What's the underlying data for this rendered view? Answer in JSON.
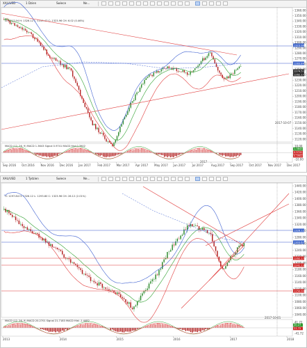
{
  "panels": [
    {
      "id": "p1",
      "symbol": "XAU/USD",
      "timeframe": "1 Dzien",
      "chart_style": "Swiece",
      "nav": "Ne...",
      "ohlc_text": "O: 1317.94 H: 1326.12 L: 1315.47 C: 1323.96 CH: 6.02 (0.46%)",
      "price_labels": [
        "1360.00",
        "1350.00",
        "1340.00",
        "1330.00",
        "1320.00",
        "1310.00",
        "1300.00",
        "1290.00",
        "1280.00",
        "1270.00",
        "1260.00",
        "1250.00",
        "1240.00",
        "1230.00",
        "1220.00",
        "1210.00",
        "1200.00",
        "1190.00",
        "1180.00",
        "1170.00",
        "1160.00",
        "1150.00",
        "1140.00",
        "1130.00",
        "1120.00"
      ],
      "tags": [
        {
          "text": "1323.96",
          "color": "#3a62c9"
        },
        {
          "text": "1283.84",
          "color": "#3a62c9"
        },
        {
          "text": "1274.51",
          "color": "#2d2d2d"
        },
        {
          "text": "1262.17",
          "color": "#2d2d2d"
        }
      ],
      "date_labels": [
        "Sep 2016",
        "Oct 2016",
        "Nov 2016",
        "Dec 2016",
        "Jan 2017",
        "Feb 2017",
        "Mar 2017",
        "Apr 2017",
        "May 2017",
        "Jun 2017",
        "Jul 2017",
        "Aug 2017",
        "Sep 2017",
        "Oct 2017",
        "Nov 2017",
        "Dec 2017"
      ],
      "year_label": "2017",
      "macd_label": "MACD (12, 26, 9) MACD 1.3643 Signal 0.9741 MACD Hist 0.3902",
      "macd_tags": [
        {
          "text": "1.3643",
          "color": "#2e9b2e"
        },
        {
          "text": "0.9741",
          "color": "#cc2222"
        },
        {
          "text": "0.3902",
          "color": "#cc2222"
        }
      ],
      "macd_scale": [
        "10.00",
        "0.00",
        "-10.00"
      ],
      "cursor_date": "2017-10-07"
    },
    {
      "id": "p2",
      "symbol": "XAU/USD",
      "timeframe": "1 Tydzien",
      "chart_style": "Swiece",
      "nav": "Ne...",
      "ohlc_text": "O: 1297.84 H: 1326.12 L: 1293.80 C: 1323.96 CH: 26.12 (2.01%)",
      "price_labels": [
        "1440.00",
        "1420.00",
        "1400.00",
        "1380.00",
        "1360.00",
        "1340.00",
        "1320.00",
        "1300.00",
        "1280.00",
        "1260.00",
        "1240.00",
        "1220.00",
        "1200.00",
        "1180.00",
        "1160.00",
        "1140.00",
        "1120.00",
        "1100.00",
        "1080.00",
        "1060.00",
        "1040.00"
      ],
      "tags": [
        {
          "text": "1326.12",
          "color": "#3a62c9"
        },
        {
          "text": "1303.67",
          "color": "#3a62c9"
        },
        {
          "text": "1262.17",
          "color": "#cc2222"
        },
        {
          "text": "1241.13",
          "color": "#cc2222"
        },
        {
          "text": "1150.00",
          "color": "#cc2222"
        }
      ],
      "date_labels": [
        "2013",
        "2014",
        "2015",
        "2016",
        "2017",
        "2018"
      ],
      "macd_label": "MACD (12, 26, 9) MACD 20.2701 Signal 21.7183 MACD Hist -1.4482",
      "macd_tags": [
        {
          "text": "20.27",
          "color": "#2e9b2e"
        },
        {
          "text": "21.72",
          "color": "#cc2222"
        }
      ],
      "macd_scale": [
        "41.72",
        "0.00",
        "-41.72"
      ],
      "cursor_date": "2017-10-01"
    }
  ],
  "colors": {
    "bull": "#2e8b2e",
    "bear": "#b22222",
    "band": "#3d5fd0",
    "ma": "#2ea02e",
    "trend": "#e03a3a",
    "hline_blue": "#3355cc",
    "hline_red": "#dd3333"
  }
}
